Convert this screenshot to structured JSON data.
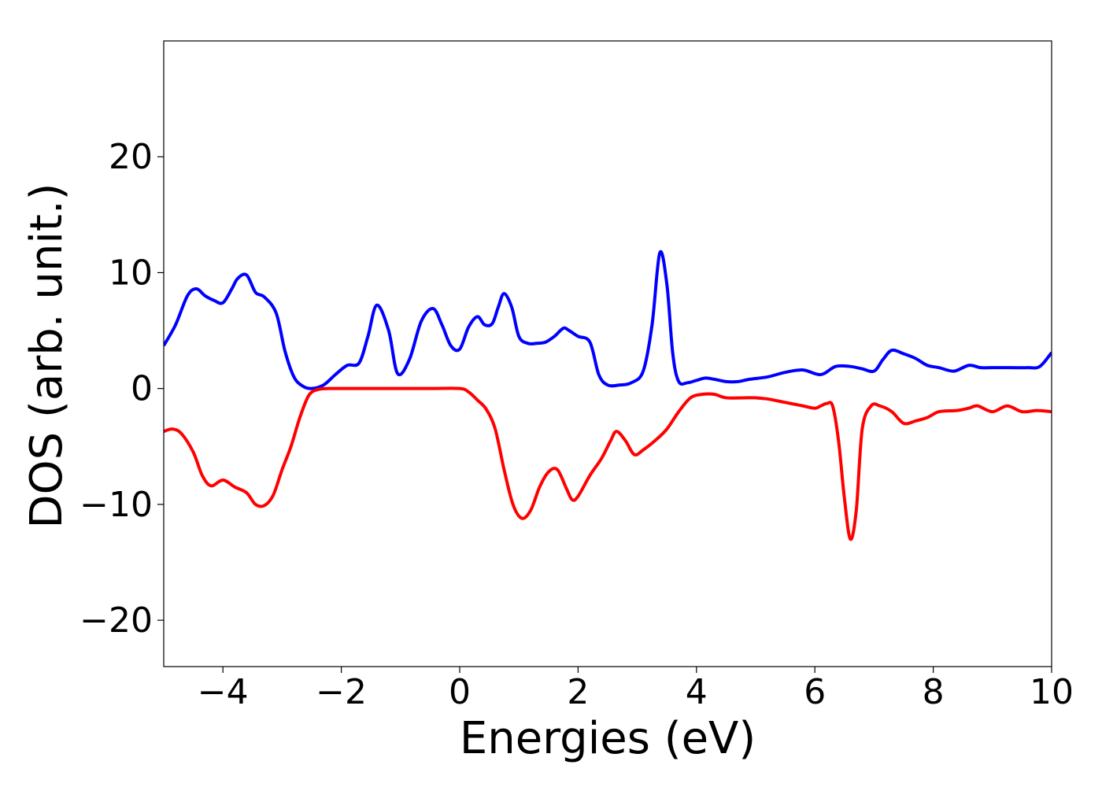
{
  "chart_data": {
    "type": "line",
    "xlabel": "Energies (eV)",
    "ylabel": "DOS (arb. unit.)",
    "xlim": [
      -5,
      10
    ],
    "ylim": [
      -24,
      30
    ],
    "xticks": [
      -4,
      -2,
      0,
      2,
      4,
      6,
      8,
      10
    ],
    "xtick_labels": [
      "−4",
      "−2",
      "0",
      "2",
      "4",
      "6",
      "8",
      "10"
    ],
    "yticks": [
      -20,
      -10,
      0,
      10,
      20
    ],
    "ytick_labels": [
      "−20",
      "−10",
      "0",
      "10",
      "20"
    ],
    "grid": false,
    "legend": false,
    "series": [
      {
        "color": "#0000ff",
        "x": [
          -5.0,
          -4.8,
          -4.6,
          -4.45,
          -4.3,
          -4.15,
          -4.0,
          -3.85,
          -3.75,
          -3.6,
          -3.45,
          -3.3,
          -3.1,
          -2.95,
          -2.8,
          -2.65,
          -2.5,
          -2.3,
          -2.1,
          -1.9,
          -1.7,
          -1.55,
          -1.4,
          -1.2,
          -1.05,
          -0.85,
          -0.65,
          -0.45,
          -0.3,
          -0.15,
          0.0,
          0.15,
          0.3,
          0.42,
          0.55,
          0.65,
          0.75,
          0.88,
          1.0,
          1.15,
          1.3,
          1.45,
          1.6,
          1.75,
          1.85,
          2.0,
          2.2,
          2.35,
          2.5,
          2.7,
          2.9,
          3.1,
          3.25,
          3.38,
          3.5,
          3.6,
          3.7,
          3.85,
          4.0,
          4.15,
          4.3,
          4.5,
          4.7,
          4.9,
          5.2,
          5.5,
          5.8,
          6.1,
          6.35,
          6.6,
          6.8,
          7.0,
          7.15,
          7.3,
          7.5,
          7.7,
          7.9,
          8.1,
          8.35,
          8.6,
          8.8,
          9.0,
          9.3,
          9.6,
          9.8,
          10.0
        ],
        "y": [
          3.7,
          5.5,
          8.0,
          8.6,
          8.0,
          7.6,
          7.4,
          8.6,
          9.5,
          9.8,
          8.3,
          7.9,
          6.5,
          3.2,
          1.0,
          0.2,
          0.0,
          0.3,
          1.2,
          2.0,
          2.2,
          4.5,
          7.2,
          5.0,
          1.3,
          2.5,
          5.8,
          6.9,
          5.5,
          3.7,
          3.4,
          5.3,
          6.2,
          5.5,
          5.6,
          7.0,
          8.2,
          7.0,
          4.5,
          3.9,
          3.9,
          4.0,
          4.5,
          5.2,
          5.0,
          4.5,
          4.0,
          1.2,
          0.3,
          0.3,
          0.5,
          1.5,
          5.5,
          11.7,
          9.0,
          3.0,
          0.6,
          0.5,
          0.7,
          0.9,
          0.8,
          0.6,
          0.6,
          0.8,
          1.0,
          1.4,
          1.6,
          1.2,
          1.9,
          1.9,
          1.7,
          1.5,
          2.5,
          3.3,
          3.0,
          2.6,
          2.0,
          1.8,
          1.5,
          2.0,
          1.8,
          1.8,
          1.8,
          1.8,
          1.9,
          3.1
        ]
      },
      {
        "color": "#ff0000",
        "x": [
          -5.0,
          -4.85,
          -4.7,
          -4.5,
          -4.35,
          -4.2,
          -4.0,
          -3.8,
          -3.6,
          -3.45,
          -3.3,
          -3.15,
          -3.0,
          -2.85,
          -2.7,
          -2.55,
          -2.4,
          -2.2,
          -2.0,
          -1.5,
          -1.0,
          -0.5,
          0.0,
          0.15,
          0.3,
          0.45,
          0.6,
          0.75,
          0.9,
          1.05,
          1.2,
          1.35,
          1.5,
          1.65,
          1.8,
          1.9,
          2.0,
          2.2,
          2.4,
          2.55,
          2.65,
          2.8,
          2.95,
          3.1,
          3.3,
          3.5,
          3.7,
          3.9,
          4.1,
          4.3,
          4.5,
          4.8,
          5.0,
          5.2,
          5.5,
          5.8,
          6.0,
          6.1,
          6.2,
          6.3,
          6.4,
          6.5,
          6.6,
          6.7,
          6.8,
          6.95,
          7.1,
          7.3,
          7.5,
          7.7,
          7.9,
          8.1,
          8.4,
          8.6,
          8.75,
          9.0,
          9.25,
          9.5,
          9.75,
          10.0
        ],
        "y": [
          -3.7,
          -3.5,
          -3.9,
          -5.5,
          -7.5,
          -8.4,
          -7.9,
          -8.5,
          -9.0,
          -10.0,
          -10.1,
          -9.2,
          -7.0,
          -5.0,
          -2.5,
          -0.6,
          -0.1,
          0.0,
          0.0,
          0.0,
          0.0,
          0.0,
          0.0,
          -0.3,
          -1.0,
          -1.8,
          -3.5,
          -7.0,
          -10.0,
          -11.2,
          -10.5,
          -8.5,
          -7.2,
          -7.0,
          -8.6,
          -9.6,
          -9.3,
          -7.5,
          -6.0,
          -4.5,
          -3.7,
          -4.5,
          -5.7,
          -5.3,
          -4.5,
          -3.5,
          -2.0,
          -0.8,
          -0.5,
          -0.5,
          -0.8,
          -0.8,
          -0.8,
          -0.9,
          -1.2,
          -1.5,
          -1.7,
          -1.5,
          -1.3,
          -1.5,
          -4.5,
          -9.5,
          -13.0,
          -10.5,
          -3.5,
          -1.5,
          -1.5,
          -2.0,
          -3.0,
          -2.8,
          -2.5,
          -2.0,
          -1.9,
          -1.7,
          -1.5,
          -2.0,
          -1.5,
          -2.0,
          -1.9,
          -2.0
        ]
      }
    ]
  }
}
